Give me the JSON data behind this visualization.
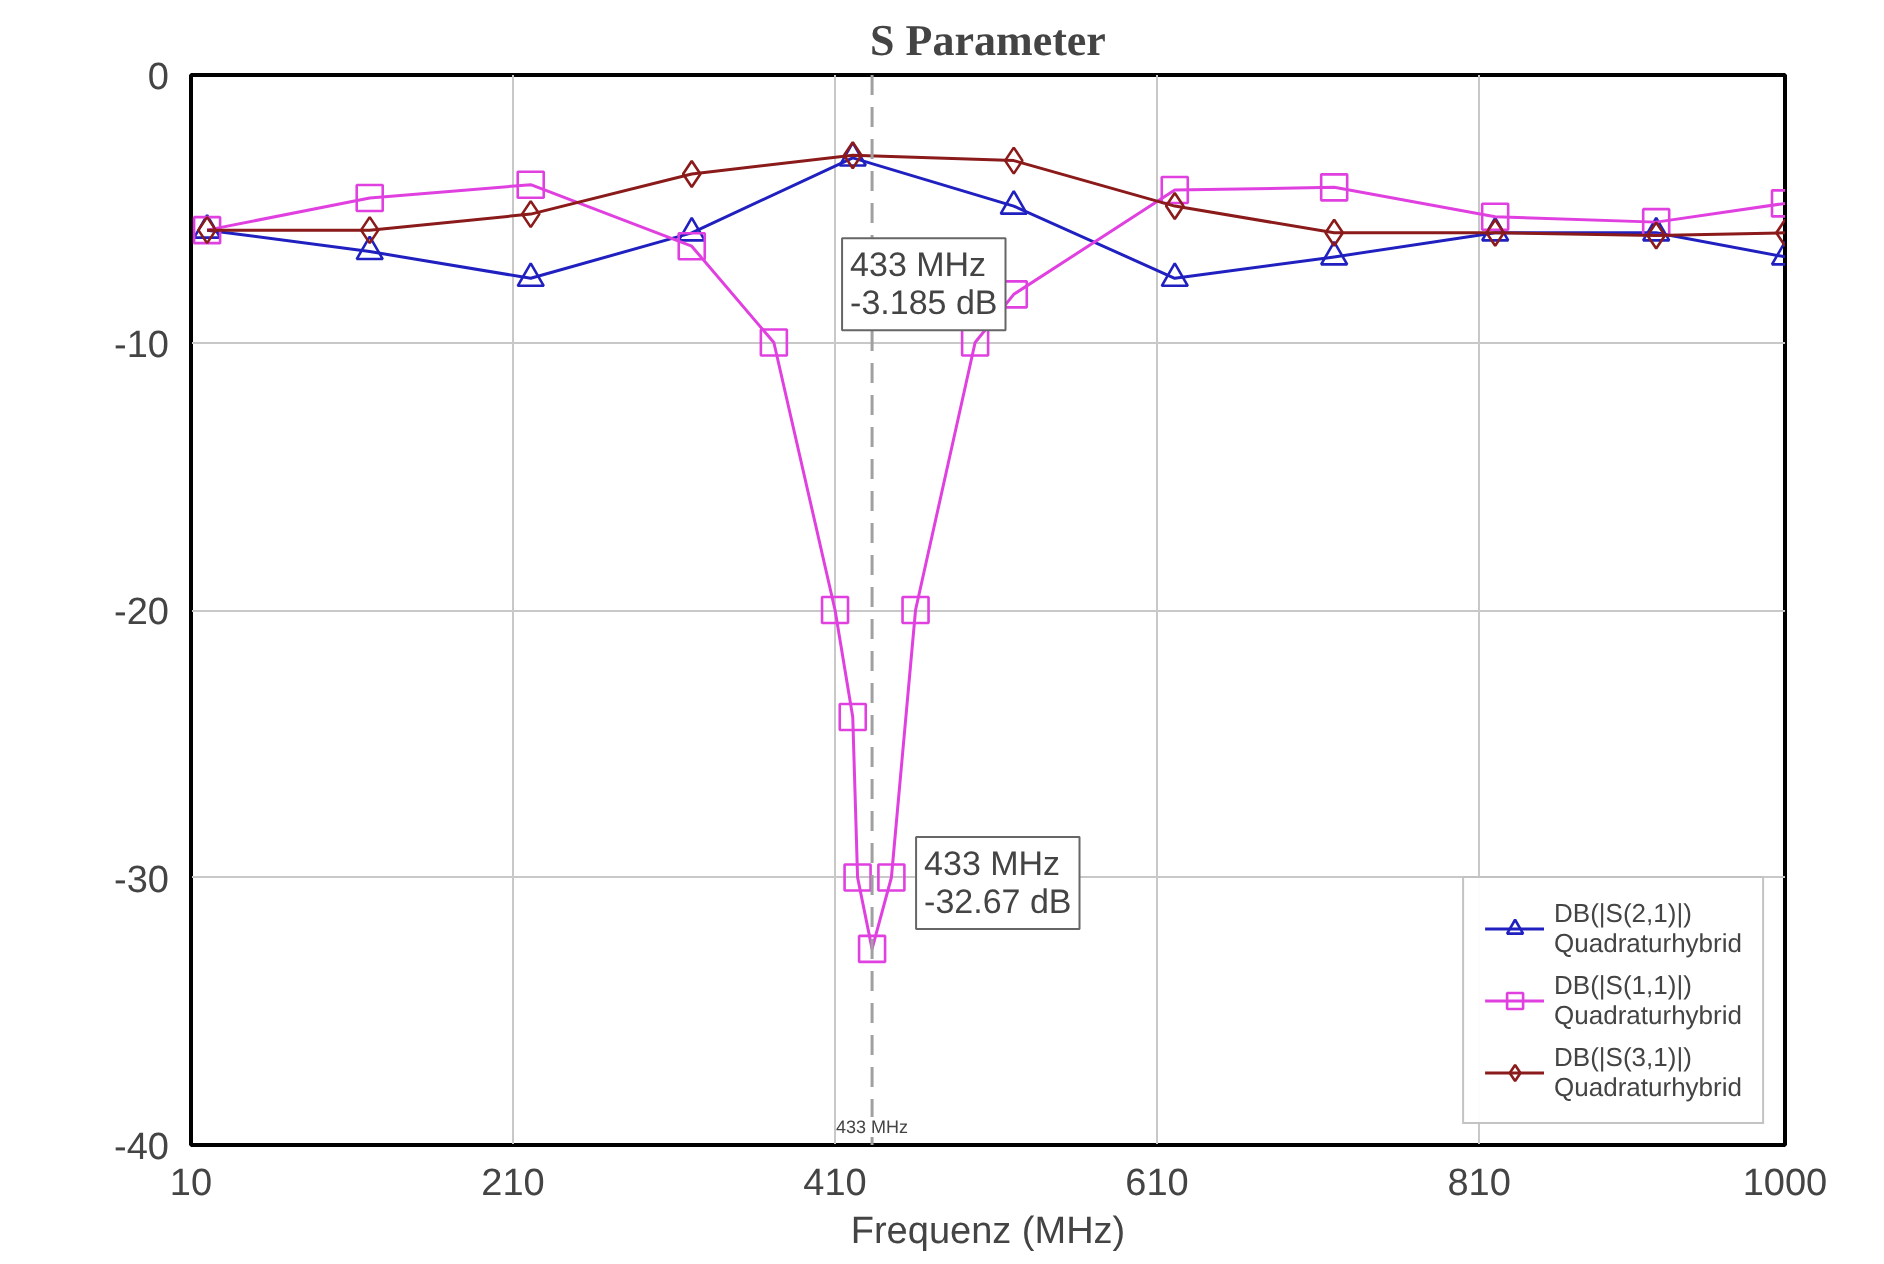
{
  "chart_data": {
    "type": "line",
    "title": "S Parameter",
    "xlabel": "Frequenz (MHz)",
    "xlim": [
      10,
      1000
    ],
    "xticks": [
      10,
      210,
      410,
      610,
      810,
      1000
    ],
    "ylim": [
      -40,
      0
    ],
    "yticks": [
      -40,
      -30,
      -20,
      -10,
      0
    ],
    "grid": true,
    "legend": "bottom right",
    "series": [
      {
        "name": "DB(|S(2,1)|)\nQuadraturhybrid",
        "color": "#2020c0",
        "marker": "triangle",
        "x": [
          20,
          121,
          221,
          321,
          421,
          521,
          621,
          720,
          820,
          920,
          1000
        ],
        "values": [
          -5.8,
          -6.6,
          -7.6,
          -5.9,
          -3.1,
          -4.9,
          -7.6,
          -6.8,
          -5.9,
          -5.9,
          -6.8
        ]
      },
      {
        "name": "DB(|S(1,1)|)\nQuadraturhybrid",
        "color": "#e040e0",
        "marker": "square",
        "x": [
          20,
          121,
          221,
          321,
          372,
          410,
          421,
          424,
          433,
          445,
          460,
          497,
          521,
          621,
          720,
          820,
          920,
          1000
        ],
        "values": [
          -5.8,
          -4.6,
          -4.1,
          -6.4,
          -10,
          -20,
          -24,
          -30,
          -32.67,
          -30,
          -20,
          -10,
          -8.2,
          -4.3,
          -4.2,
          -5.3,
          -5.5,
          -4.8
        ]
      },
      {
        "name": "DB(|S(3,1)|)\nQuadraturhybrid",
        "color": "#8b1a1a",
        "marker": "diamond",
        "x": [
          20,
          121,
          221,
          321,
          421,
          521,
          621,
          720,
          820,
          920,
          1000
        ],
        "values": [
          -5.8,
          -5.8,
          -5.2,
          -3.7,
          -3.0,
          -3.2,
          -4.9,
          -5.9,
          -5.9,
          -6.0,
          -5.9
        ]
      }
    ],
    "ref_lines": [
      {
        "axis": "x",
        "value": 433,
        "label": "433 MHz",
        "color": "#a0a0a0",
        "line_style": "dashed"
      }
    ],
    "annotations": [
      {
        "text": "433 MHz\n-3.185 dB",
        "x": 433,
        "y": -3.185
      },
      {
        "text": "433 MHz\n-32.67 dB",
        "x": 433,
        "y": -32.67
      }
    ]
  }
}
